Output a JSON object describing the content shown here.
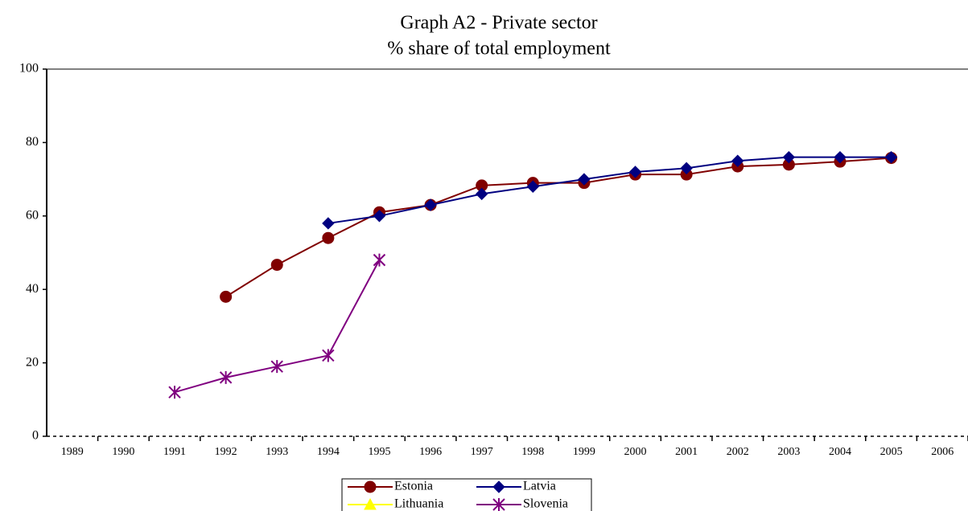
{
  "chart_data": {
    "type": "line",
    "title": "Graph A2 - Private sector",
    "subtitle": "% share of total employment",
    "categories": [
      "1989",
      "1990",
      "1991",
      "1992",
      "1993",
      "1994",
      "1995",
      "1996",
      "1997",
      "1998",
      "1999",
      "2000",
      "2001",
      "2002",
      "2003",
      "2004",
      "2005",
      "2006"
    ],
    "series": [
      {
        "name": "Estonia",
        "color": "#800000",
        "marker": "circle",
        "values": [
          null,
          null,
          null,
          38,
          46.7,
          54,
          61,
          63,
          68.3,
          69,
          69,
          71.3,
          71.3,
          73.5,
          74,
          74.8,
          75.8,
          null
        ]
      },
      {
        "name": "Latvia",
        "color": "#000080",
        "marker": "diamond",
        "values": [
          null,
          null,
          null,
          null,
          null,
          58,
          60,
          63,
          66,
          68,
          70,
          72,
          73,
          75,
          76,
          76,
          76,
          null
        ]
      },
      {
        "name": "Lithuania",
        "color": "#ffff00",
        "marker": "triangle",
        "values": [
          null,
          null,
          null,
          null,
          null,
          null,
          null,
          null,
          null,
          null,
          null,
          null,
          null,
          null,
          null,
          null,
          null,
          null
        ]
      },
      {
        "name": "Slovenia",
        "color": "#800080",
        "marker": "star",
        "values": [
          null,
          null,
          12,
          16,
          19,
          22,
          48,
          null,
          null,
          null,
          null,
          null,
          null,
          null,
          null,
          null,
          null,
          null
        ]
      }
    ],
    "ylim": [
      0,
      100
    ],
    "yticks": [
      0,
      20,
      40,
      60,
      80,
      100
    ],
    "grid": false
  }
}
